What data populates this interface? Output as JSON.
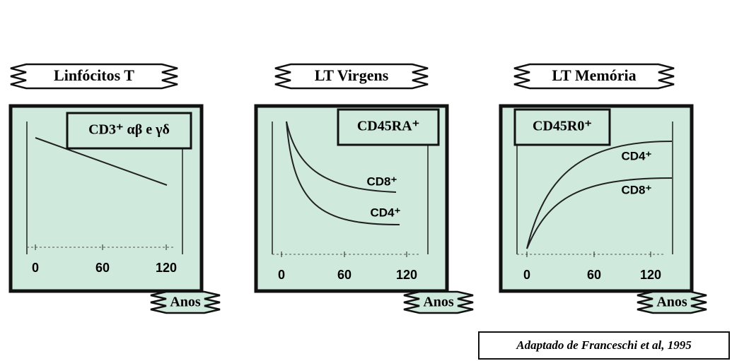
{
  "panels": [
    {
      "title": "Linfócitos T",
      "label": "CD3⁺ αβ e γδ",
      "x_ticks": [
        0,
        60,
        120
      ],
      "x_label": "Anos",
      "curves": []
    },
    {
      "title": "LT Virgens",
      "label": "CD45RA⁺",
      "x_ticks": [
        0,
        60,
        120
      ],
      "x_label": "Anos",
      "curves": [
        "CD8⁺",
        "CD4⁺"
      ]
    },
    {
      "title": "LT Memória",
      "label": "CD45R0⁺",
      "x_ticks": [
        0,
        60,
        120
      ],
      "x_label": "Anos",
      "curves": [
        "CD4⁺",
        "CD8⁺"
      ]
    }
  ],
  "citation": "Adaptado de Franceschi et al, 1995"
}
